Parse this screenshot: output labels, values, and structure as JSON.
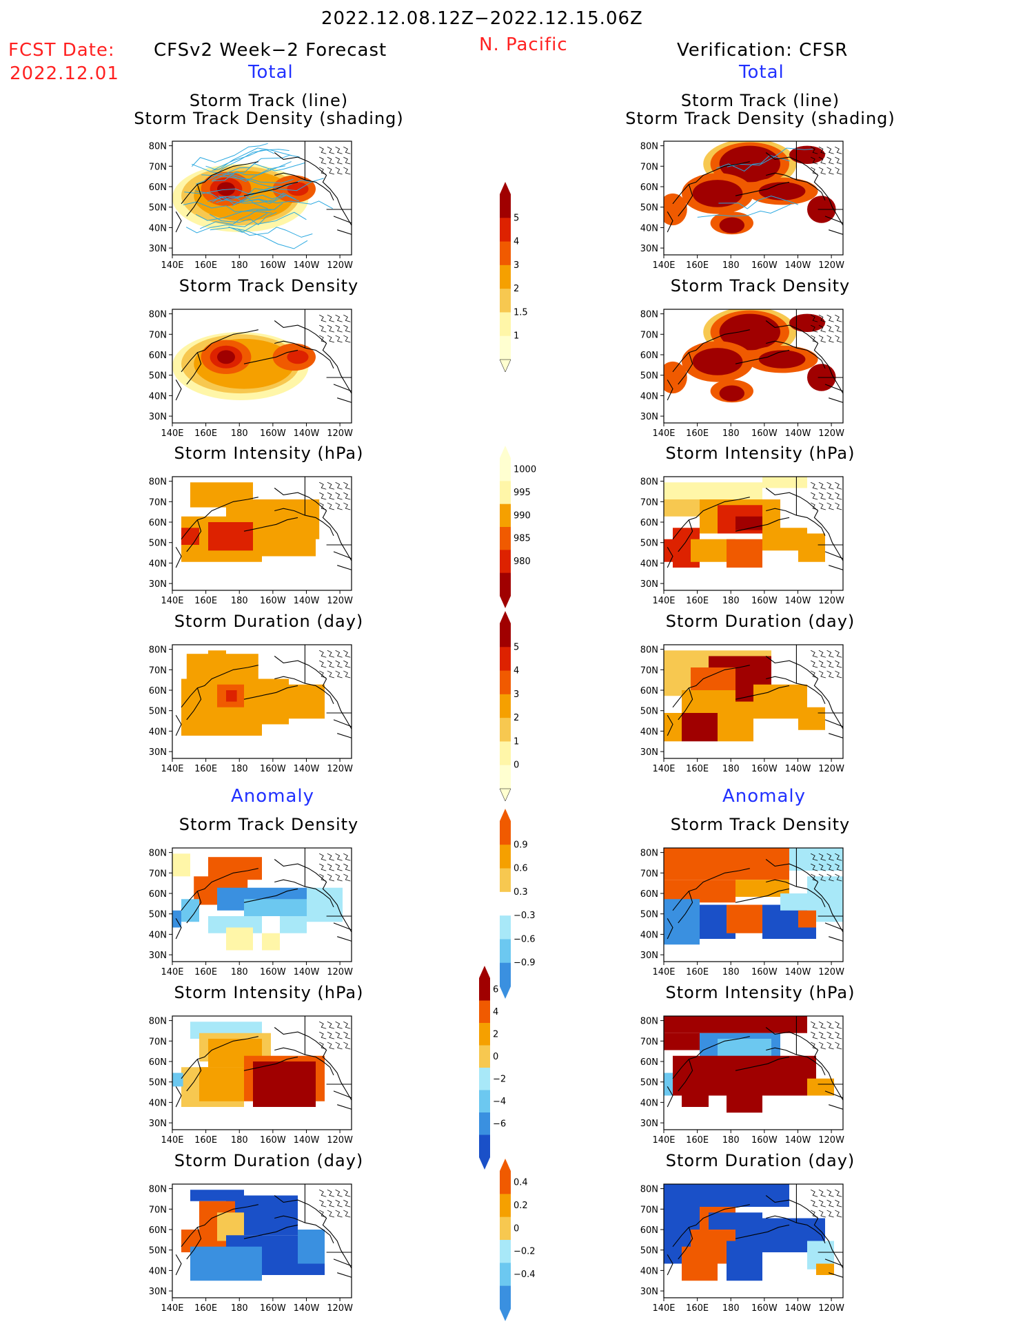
{
  "header": {
    "period": "2022.12.08.12Z−2022.12.15.06Z",
    "fcst_label": "FCST Date:",
    "fcst_date": "2022.12.01",
    "left_title": "CFSv2 Week−2 Forecast",
    "region": "N. Pacific",
    "right_title": "Verification: CFSR",
    "total_left": "Total",
    "total_right": "Total",
    "anomaly_left": "Anomaly",
    "anomaly_right": "Anomaly"
  },
  "panel_titles": {
    "track_line": "Storm Track (line)",
    "track_shading": "Storm Track Density (shading)",
    "density": "Storm Track Density",
    "intensity": "Storm Intensity (hPa)",
    "duration": "Storm Duration (day)"
  },
  "axes": {
    "lat_labels": [
      "80N",
      "70N",
      "60N",
      "50N",
      "40N",
      "30N"
    ],
    "lon_labels": [
      "140E",
      "160E",
      "180",
      "160W",
      "140W",
      "120W"
    ]
  },
  "colorbars": {
    "density": [
      "5",
      "4",
      "3",
      "2",
      "1.5",
      "1"
    ],
    "intensity": [
      "1000",
      "995",
      "990",
      "985",
      "980"
    ],
    "duration": [
      "5",
      "4",
      "3",
      "2",
      "1",
      "0"
    ],
    "density_anom": [
      "0.9",
      "0.6",
      "0.3",
      "−0.3",
      "−0.6",
      "−0.9"
    ],
    "intensity_anom": [
      "6",
      "4",
      "2",
      "0",
      "−2",
      "−4",
      "−6"
    ],
    "duration_anom": [
      "0.4",
      "0.2",
      "0",
      "−0.2",
      "−0.4"
    ]
  },
  "colors": {
    "dark_red": "#a00000",
    "red": "#dd2200",
    "orange_red": "#f05a00",
    "orange": "#f5a000",
    "light_orange": "#f7c850",
    "yellow": "#fff6a8",
    "light_blue": "#a8e8f8",
    "blue1": "#6cc8f0",
    "blue2": "#3a90e0",
    "blue3": "#1a50c8",
    "title_red": "#ff2020",
    "title_blue": "#2030ff"
  }
}
